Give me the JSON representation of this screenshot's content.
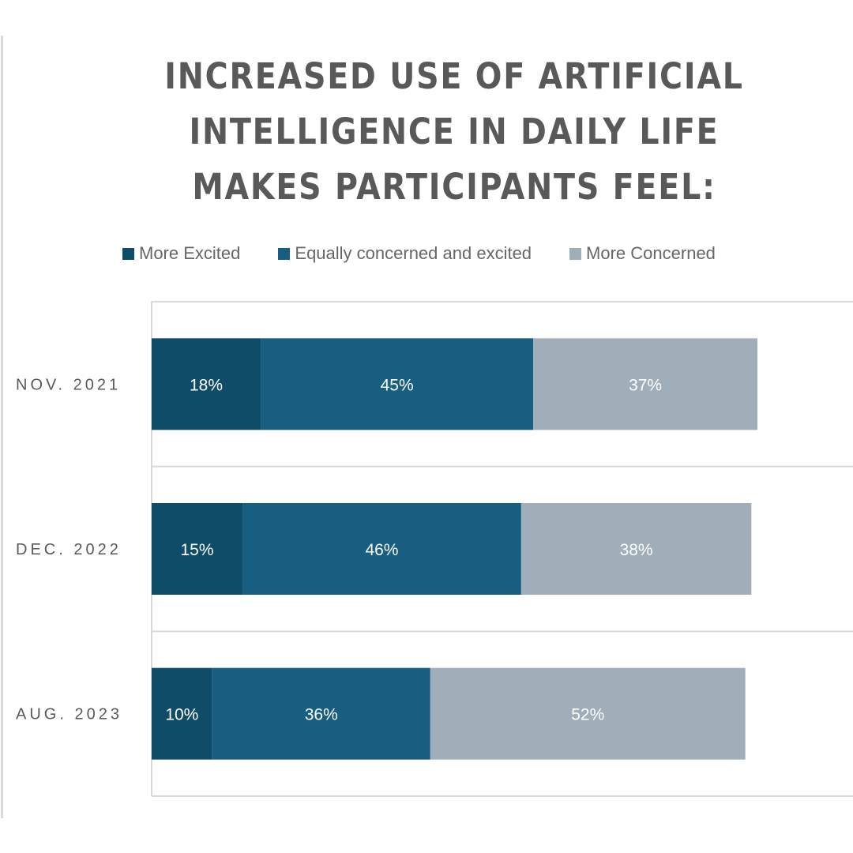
{
  "chart_data": {
    "type": "bar",
    "orientation": "horizontal",
    "stacked": true,
    "title_lines": [
      "INCREASED USE OF ARTIFICIAL",
      "INTELLIGENCE IN DAILY LIFE",
      "MAKES PARTICIPANTS FEEL:"
    ],
    "categories": [
      "NOV. 2021",
      "DEC. 2022",
      "AUG. 2023"
    ],
    "series": [
      {
        "name": "More Excited",
        "color": "#0f4c68",
        "values": [
          18,
          15,
          10
        ],
        "labels": [
          "18%",
          "15%",
          "10%"
        ]
      },
      {
        "name": "Equally concerned and excited",
        "color": "#175e80",
        "values": [
          45,
          46,
          36
        ],
        "labels": [
          "45%",
          "46%",
          "36%"
        ]
      },
      {
        "name": "More Concerned",
        "color": "#a0aeb9",
        "values": [
          37,
          38,
          52
        ],
        "labels": [
          "37%",
          "38%",
          "52%"
        ]
      }
    ],
    "xlim": [
      0,
      100
    ],
    "xlabel": "",
    "ylabel": "",
    "legend_position": "top",
    "grid": false
  }
}
